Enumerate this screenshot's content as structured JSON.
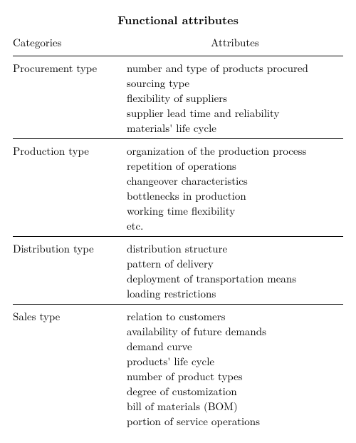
{
  "title": "Functional attributes",
  "headers": {
    "categories": "Categories",
    "attributes": "Attributes"
  },
  "rows": [
    {
      "category": "Procurement type",
      "attributes": [
        "number and type of products procured",
        "sourcing type",
        "flexibility of suppliers",
        "supplier lead time and reliability",
        "materials' life cycle"
      ]
    },
    {
      "category": "Production type",
      "attributes": [
        "organization of the production process",
        "repetition of operations",
        "changeover characteristics",
        "bottlenecks in production",
        "working time flexibility",
        "etc."
      ]
    },
    {
      "category": "Distribution type",
      "attributes": [
        "distribution structure",
        "pattern of delivery",
        "deployment of transportation means",
        "loading restrictions"
      ]
    },
    {
      "category": "Sales type",
      "attributes": [
        "relation to customers",
        "availability of future demands",
        "demand curve",
        "products' life cycle",
        "number of product types",
        "degree of customization",
        "bill of materials (BOM)",
        "portion of service operations"
      ]
    }
  ]
}
